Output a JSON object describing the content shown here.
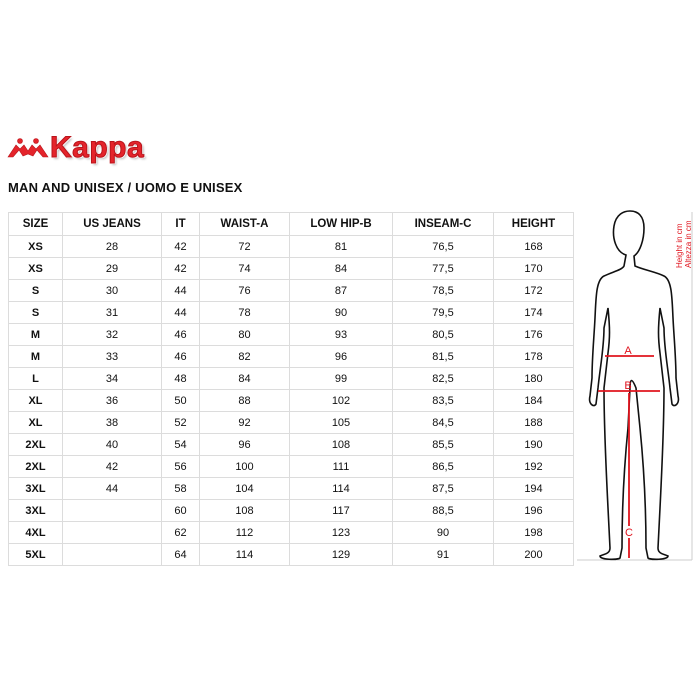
{
  "brand": {
    "name": "Kappa",
    "color": "#e4242b"
  },
  "title": "MAN AND UNISEX / UOMO E UNISEX",
  "table": {
    "headers": [
      "SIZE",
      "US JEANS",
      "IT",
      "WAIST-A",
      "LOW HIP-B",
      "INSEAM-C",
      "HEIGHT"
    ],
    "rows": [
      [
        "XS",
        "28",
        "42",
        "72",
        "81",
        "76,5",
        "168"
      ],
      [
        "XS",
        "29",
        "42",
        "74",
        "84",
        "77,5",
        "170"
      ],
      [
        "S",
        "30",
        "44",
        "76",
        "87",
        "78,5",
        "172"
      ],
      [
        "S",
        "31",
        "44",
        "78",
        "90",
        "79,5",
        "174"
      ],
      [
        "M",
        "32",
        "46",
        "80",
        "93",
        "80,5",
        "176"
      ],
      [
        "M",
        "33",
        "46",
        "82",
        "96",
        "81,5",
        "178"
      ],
      [
        "L",
        "34",
        "48",
        "84",
        "99",
        "82,5",
        "180"
      ],
      [
        "XL",
        "36",
        "50",
        "88",
        "102",
        "83,5",
        "184"
      ],
      [
        "XL",
        "38",
        "52",
        "92",
        "105",
        "84,5",
        "188"
      ],
      [
        "2XL",
        "40",
        "54",
        "96",
        "108",
        "85,5",
        "190"
      ],
      [
        "2XL",
        "42",
        "56",
        "100",
        "111",
        "86,5",
        "192"
      ],
      [
        "3XL",
        "44",
        "58",
        "104",
        "114",
        "87,5",
        "194"
      ],
      [
        "3XL",
        "",
        "60",
        "108",
        "117",
        "88,5",
        "196"
      ],
      [
        "4XL",
        "",
        "62",
        "112",
        "123",
        "90",
        "198"
      ],
      [
        "5XL",
        "",
        "64",
        "114",
        "129",
        "91",
        "200"
      ]
    ]
  },
  "figure": {
    "labels": {
      "a": "A",
      "b": "B",
      "c": "C"
    },
    "height_label_en": "Height in cm",
    "height_label_it": "Altezza in cm",
    "accent": "#e0141e"
  }
}
